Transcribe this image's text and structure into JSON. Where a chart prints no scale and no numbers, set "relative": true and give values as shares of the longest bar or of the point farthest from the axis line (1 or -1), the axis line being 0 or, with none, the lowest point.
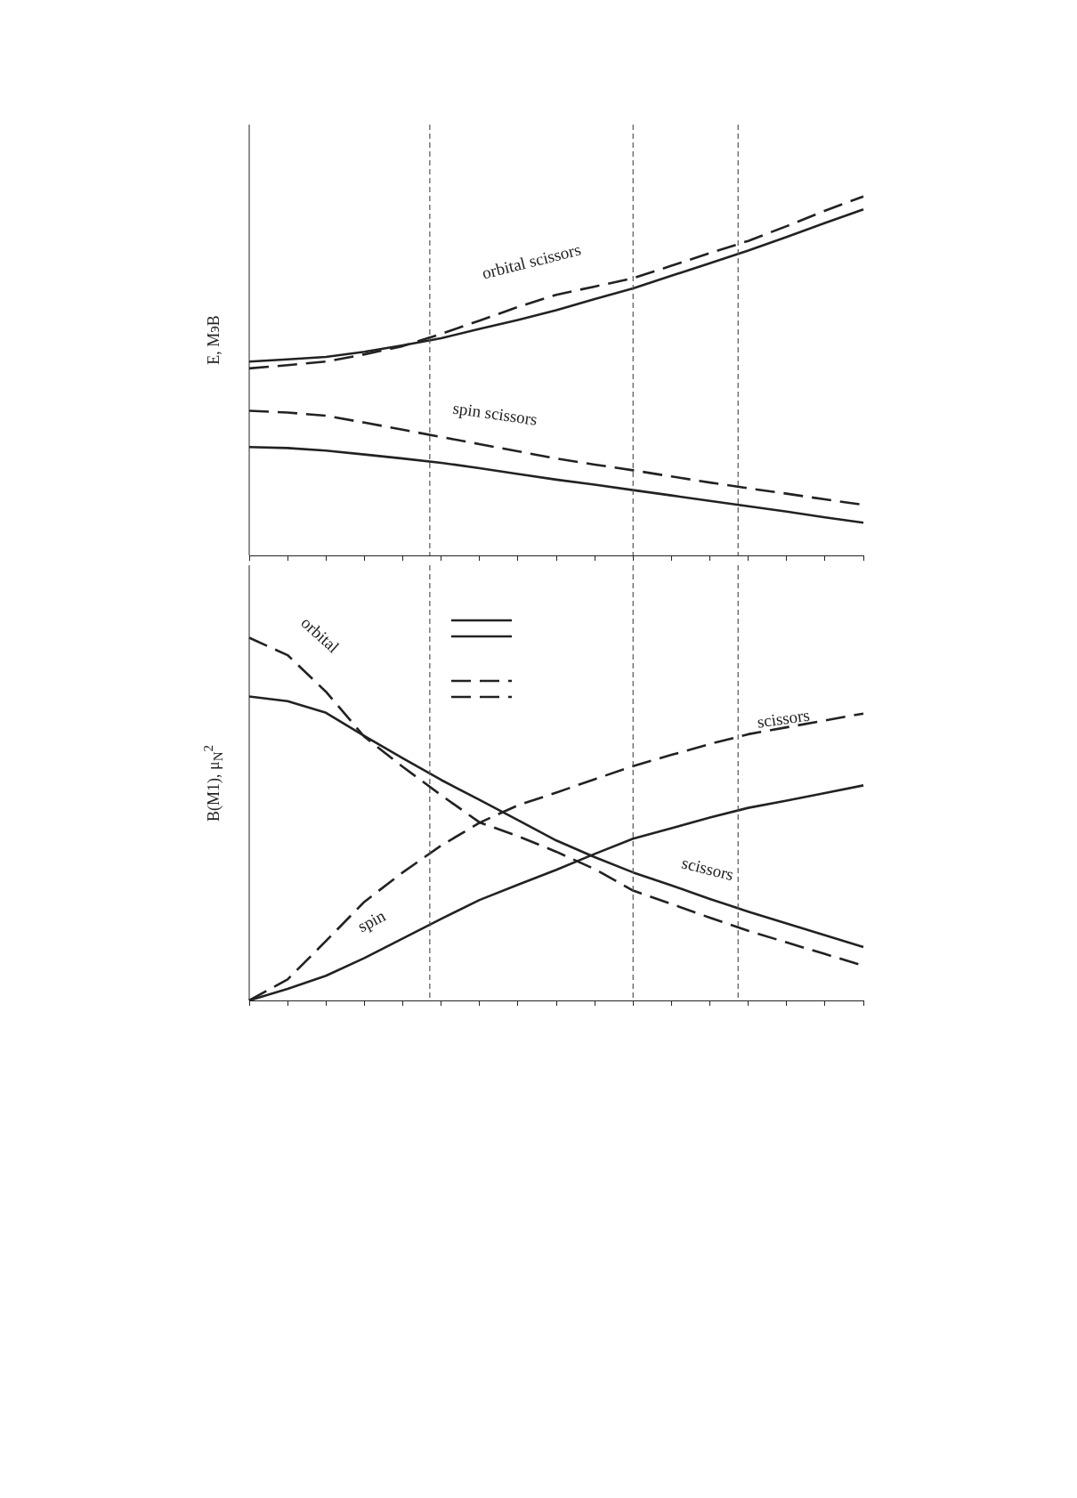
{
  "chart_data": [
    {
      "type": "line",
      "relative": true,
      "ylabel": "E, МэВ",
      "legend": false,
      "grid": false,
      "tick_labels": false,
      "categories": [
        null,
        null,
        null,
        null,
        null,
        null,
        null,
        null,
        null,
        null,
        null,
        null,
        null,
        null,
        null,
        null,
        null
      ],
      "series": [
        {
          "color": "#222222",
          "line_style": "dashed",
          "values": [
            0.521,
            0.53,
            0.54,
            0.56,
            0.583,
            0.617,
            0.654,
            0.692,
            0.726,
            0.749,
            0.772,
            0.807,
            0.842,
            0.876,
            0.917,
            0.96,
            1.0
          ]
        },
        {
          "color": "#222222",
          "line_style": "solid",
          "values": [
            0.54,
            0.546,
            0.553,
            0.567,
            0.585,
            0.605,
            0.631,
            0.656,
            0.683,
            0.714,
            0.744,
            0.779,
            0.814,
            0.849,
            0.887,
            0.926,
            0.964
          ]
        },
        {
          "color": "#222222",
          "line_style": "dashed",
          "values": [
            0.403,
            0.398,
            0.389,
            0.37,
            0.35,
            0.33,
            0.31,
            0.29,
            0.27,
            0.253,
            0.237,
            0.22,
            0.203,
            0.187,
            0.172,
            0.156,
            0.141
          ]
        },
        {
          "color": "#222222",
          "line_style": "solid",
          "values": [
            0.302,
            0.299,
            0.292,
            0.281,
            0.27,
            0.258,
            0.243,
            0.227,
            0.211,
            0.197,
            0.182,
            0.167,
            0.152,
            0.137,
            0.122,
            0.106,
            0.091
          ]
        }
      ],
      "annotations": [
        "orbital scissors",
        "spin scissors"
      ]
    },
    {
      "type": "line",
      "relative": true,
      "ylabel": "B(M1), μ$_{N}$$^{2}$",
      "legend": false,
      "grid": false,
      "tick_labels": false,
      "categories": [
        null,
        null,
        null,
        null,
        null,
        null,
        null,
        null,
        null,
        null,
        null,
        null,
        null,
        null,
        null,
        null,
        null
      ],
      "series": [
        {
          "color": "#222222",
          "line_style": "dashed",
          "values": [
            1.0,
            0.952,
            0.851,
            0.727,
            0.644,
            0.566,
            0.491,
            0.453,
            0.41,
            0.362,
            0.303,
            0.266,
            0.228,
            0.192,
            0.16,
            0.128,
            0.096
          ]
        },
        {
          "color": "#222222",
          "line_style": "solid",
          "values": [
            0.838,
            0.825,
            0.793,
            0.729,
            0.668,
            0.608,
            0.553,
            0.497,
            0.441,
            0.395,
            0.353,
            0.317,
            0.28,
            0.245,
            0.212,
            0.18,
            0.147
          ]
        },
        {
          "color": "#222222",
          "line_style": "dashed",
          "values": [
            0,
            0.058,
            0.164,
            0.272,
            0.353,
            0.427,
            0.49,
            0.538,
            0.573,
            0.61,
            0.646,
            0.677,
            0.707,
            0.734,
            0.753,
            0.772,
            0.791
          ]
        },
        {
          "color": "#222222",
          "line_style": "solid",
          "values": [
            0,
            0.032,
            0.068,
            0.117,
            0.171,
            0.225,
            0.277,
            0.319,
            0.36,
            0.404,
            0.446,
            0.475,
            0.504,
            0.531,
            0.551,
            0.572,
            0.593
          ]
        }
      ],
      "annotations": [
        "orbital",
        "spin",
        "scissors",
        "scissors"
      ]
    }
  ]
}
